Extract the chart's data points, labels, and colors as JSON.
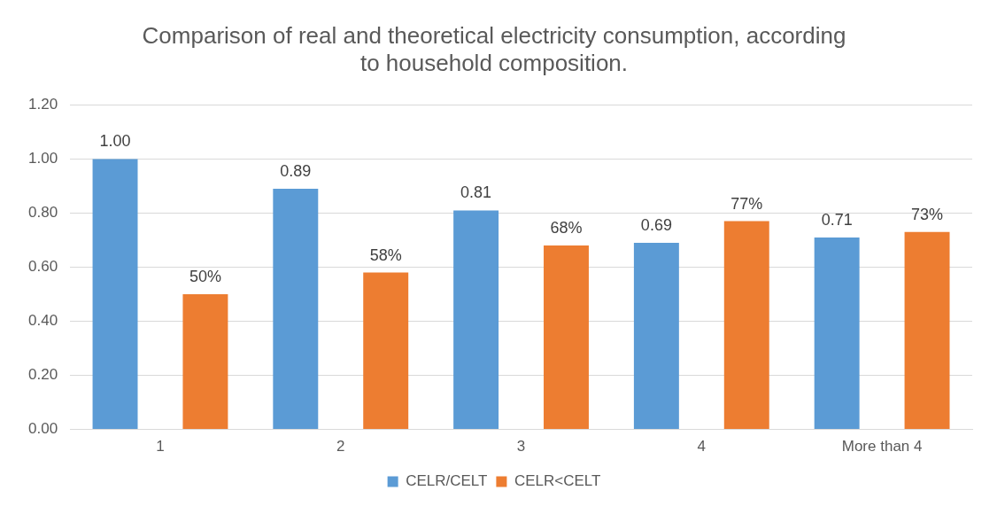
{
  "chart_data": {
    "type": "bar",
    "title": "Comparison of real and theoretical electricity consumption, according to household composition.",
    "categories": [
      "1",
      "2",
      "3",
      "4",
      "More than 4"
    ],
    "series": [
      {
        "name": "CELR/CELT",
        "color": "#5b9bd5",
        "values": [
          1.0,
          0.89,
          0.81,
          0.69,
          0.71
        ],
        "value_labels": [
          "1.00",
          "0.89",
          "0.81",
          "0.69",
          "0.71"
        ]
      },
      {
        "name": "CELR<CELT",
        "color": "#ed7d31",
        "values": [
          0.5,
          0.58,
          0.68,
          0.77,
          0.73
        ],
        "value_labels": [
          "50%",
          "58%",
          "68%",
          "77%",
          "73%"
        ]
      }
    ],
    "ylim": [
      0,
      1.2
    ],
    "yticks": [
      {
        "value": 0,
        "label": "0.00"
      },
      {
        "value": 0.2,
        "label": "0.20"
      },
      {
        "value": 0.4,
        "label": "0.40"
      },
      {
        "value": 0.6,
        "label": "0.60"
      },
      {
        "value": 0.8,
        "label": "0.80"
      },
      {
        "value": 1,
        "label": "1.00"
      },
      {
        "value": 1.2,
        "label": "1.20"
      }
    ],
    "grid": "y",
    "legend": "bottom"
  }
}
